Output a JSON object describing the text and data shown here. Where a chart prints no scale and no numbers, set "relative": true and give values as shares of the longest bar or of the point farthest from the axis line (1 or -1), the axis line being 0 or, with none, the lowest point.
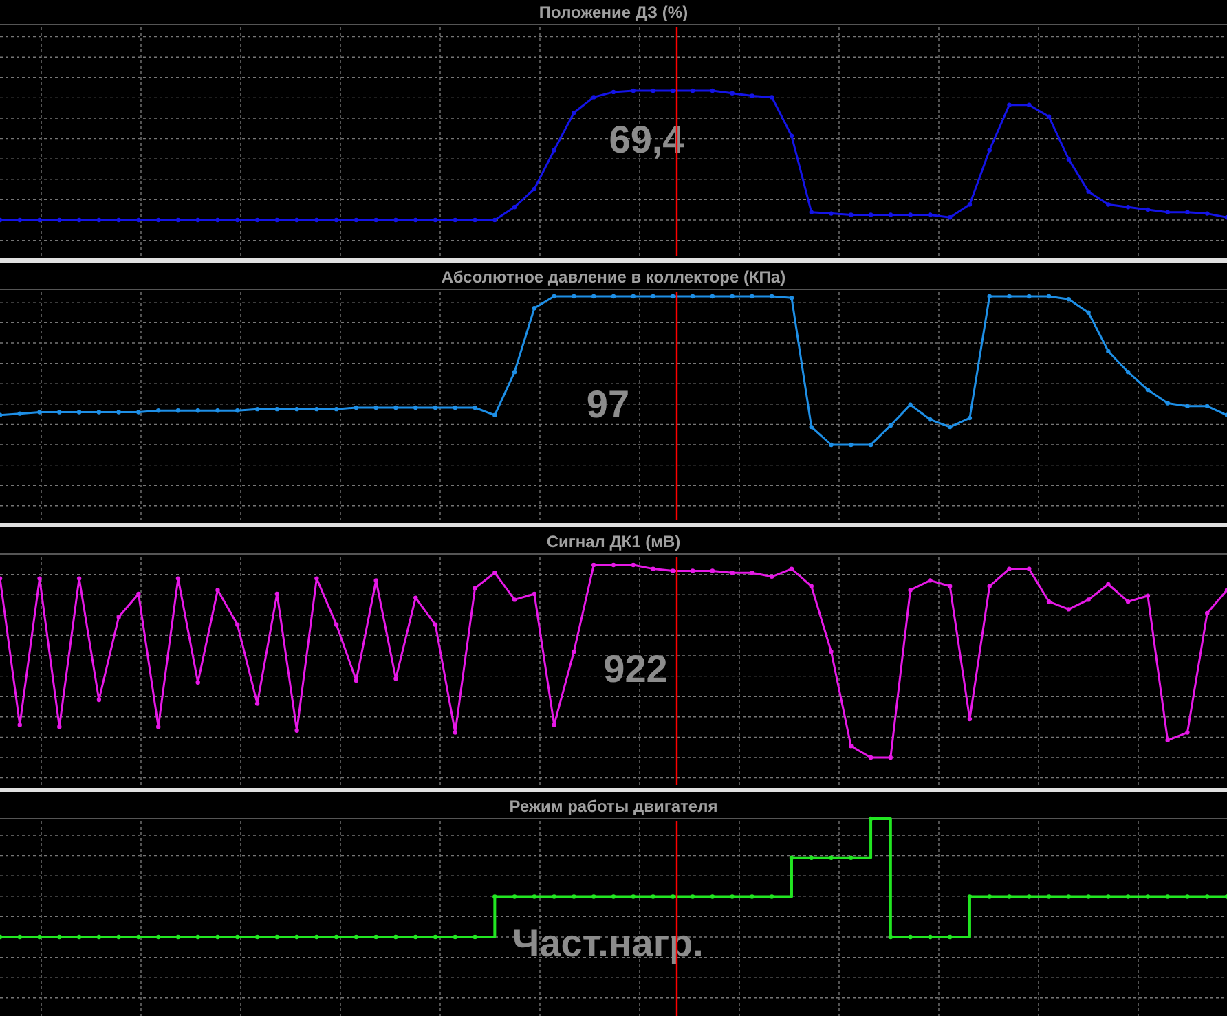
{
  "chart_data": [
    {
      "type": "line",
      "title": "Положение ДЗ  (%)",
      "relative": true,
      "grid": true,
      "marker": "circle",
      "annotations": [
        "69,4"
      ],
      "categories": [
        null,
        null,
        null,
        null,
        null,
        null,
        null,
        null,
        null,
        null,
        null,
        null,
        null,
        null,
        null,
        null,
        null,
        null,
        null,
        null,
        null,
        null,
        null,
        null,
        null,
        null,
        null,
        null,
        null,
        null,
        null,
        null,
        null,
        null,
        null,
        null,
        null,
        null,
        null,
        null,
        null,
        null,
        null,
        null,
        null,
        null,
        null,
        null,
        null,
        null,
        null,
        null,
        null,
        null,
        null,
        null,
        null,
        null,
        null,
        null,
        null,
        null,
        null
      ],
      "series": [
        {
          "color": "#1414e6",
          "values": [
            0,
            0,
            0,
            0,
            0,
            0,
            0,
            0,
            0,
            0,
            0,
            0,
            0,
            0,
            0,
            0,
            0,
            0,
            0,
            0,
            0,
            0,
            0,
            0,
            0,
            0,
            0.1,
            0.24,
            0.54,
            0.83,
            0.95,
            0.99,
            1,
            1,
            1,
            1,
            1,
            0.98,
            0.96,
            0.95,
            0.65,
            0.06,
            0.05,
            0.04,
            0.04,
            0.04,
            0.04,
            0.04,
            0.02,
            0.12,
            0.54,
            0.89,
            0.89,
            0.8,
            0.47,
            0.22,
            0.12,
            0.1,
            0.08,
            0.06,
            0.06,
            0.05,
            0.02
          ]
        }
      ]
    },
    {
      "type": "line",
      "title": "Абсолютное давление в коллекторе  (КПа)",
      "relative": true,
      "grid": true,
      "marker": "circle",
      "annotations": [
        "97"
      ],
      "categories": [
        null,
        null,
        null,
        null,
        null,
        null,
        null,
        null,
        null,
        null,
        null,
        null,
        null,
        null,
        null,
        null,
        null,
        null,
        null,
        null,
        null,
        null,
        null,
        null,
        null,
        null,
        null,
        null,
        null,
        null,
        null,
        null,
        null,
        null,
        null,
        null,
        null,
        null,
        null,
        null,
        null,
        null,
        null,
        null,
        null,
        null,
        null,
        null,
        null,
        null,
        null,
        null,
        null,
        null,
        null,
        null,
        null,
        null,
        null,
        null,
        null,
        null,
        null
      ],
      "series": [
        {
          "color": "#1e8fe6",
          "values": [
            0.2,
            0.21,
            0.22,
            0.22,
            0.22,
            0.22,
            0.22,
            0.22,
            0.23,
            0.23,
            0.23,
            0.23,
            0.23,
            0.24,
            0.24,
            0.24,
            0.24,
            0.24,
            0.25,
            0.25,
            0.25,
            0.25,
            0.25,
            0.25,
            0.25,
            0.2,
            0.49,
            0.92,
            1,
            1,
            1,
            1,
            1,
            1,
            1,
            1,
            1,
            1,
            1,
            1,
            0.99,
            0.12,
            0,
            0,
            0,
            0.13,
            0.27,
            0.17,
            0.12,
            0.18,
            1,
            1,
            1,
            1,
            0.98,
            0.89,
            0.63,
            0.49,
            0.37,
            0.28,
            0.26,
            0.26,
            0.2
          ]
        }
      ]
    },
    {
      "type": "line",
      "title": "Сигнал ДК1  (мВ)",
      "relative": true,
      "grid": true,
      "marker": "circle",
      "annotations": [
        "922"
      ],
      "categories": [
        null,
        null,
        null,
        null,
        null,
        null,
        null,
        null,
        null,
        null,
        null,
        null,
        null,
        null,
        null,
        null,
        null,
        null,
        null,
        null,
        null,
        null,
        null,
        null,
        null,
        null,
        null,
        null,
        null,
        null,
        null,
        null,
        null,
        null,
        null,
        null,
        null,
        null,
        null,
        null,
        null,
        null,
        null,
        null,
        null,
        null,
        null,
        null,
        null,
        null,
        null,
        null,
        null,
        null,
        null,
        null,
        null,
        null,
        null,
        null,
        null,
        null,
        null
      ],
      "series": [
        {
          "color": "#e619e6",
          "values": [
            0.93,
            0.17,
            0.93,
            0.16,
            0.93,
            0.3,
            0.73,
            0.85,
            0.16,
            0.93,
            0.39,
            0.87,
            0.69,
            0.28,
            0.85,
            0.14,
            0.93,
            0.69,
            0.4,
            0.92,
            0.41,
            0.83,
            0.69,
            0.13,
            0.88,
            0.96,
            0.82,
            0.85,
            0.17,
            0.55,
            1,
            1,
            1,
            0.98,
            0.97,
            0.97,
            0.97,
            0.96,
            0.96,
            0.94,
            0.98,
            0.89,
            0.55,
            0.06,
            0,
            0,
            0.87,
            0.92,
            0.89,
            0.2,
            0.89,
            0.98,
            0.98,
            0.81,
            0.77,
            0.82,
            0.9,
            0.81,
            0.84,
            0.09,
            0.13,
            0.75,
            0.87
          ]
        }
      ]
    },
    {
      "type": "step",
      "title": "Режим работы двигателя",
      "relative": true,
      "grid": true,
      "marker": "circle",
      "annotations": [
        "Част.нагр."
      ],
      "categories": [
        null,
        null,
        null,
        null,
        null,
        null,
        null,
        null,
        null,
        null,
        null,
        null,
        null,
        null,
        null,
        null,
        null,
        null,
        null,
        null,
        null,
        null,
        null,
        null,
        null,
        null,
        null,
        null,
        null,
        null,
        null,
        null,
        null,
        null,
        null,
        null,
        null,
        null,
        null,
        null,
        null,
        null,
        null,
        null,
        null,
        null,
        null,
        null,
        null,
        null,
        null,
        null,
        null,
        null,
        null,
        null,
        null,
        null,
        null,
        null,
        null,
        null,
        null
      ],
      "series": [
        {
          "color": "#22e622",
          "values": [
            0,
            0,
            0,
            0,
            0,
            0,
            0,
            0,
            0,
            0,
            0,
            0,
            0,
            0,
            0,
            0,
            0,
            0,
            0,
            0,
            0,
            0,
            0,
            0,
            0,
            0.34,
            0.34,
            0.34,
            0.34,
            0.34,
            0.34,
            0.34,
            0.34,
            0.34,
            0.34,
            0.34,
            0.34,
            0.34,
            0.34,
            0.34,
            0.67,
            0.67,
            0.67,
            0.67,
            1,
            0,
            0,
            0,
            0,
            0.34,
            0.34,
            0.34,
            0.34,
            0.34,
            0.34,
            0.34,
            0.34,
            0.34,
            0.34,
            0.34,
            0.34,
            0.34,
            0.34
          ]
        }
      ]
    }
  ]
}
